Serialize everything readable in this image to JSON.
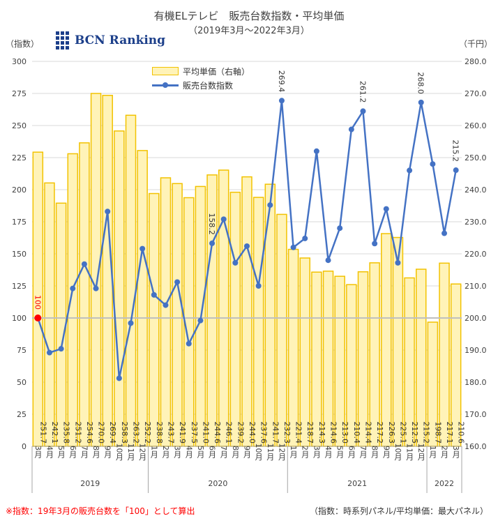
{
  "header": {
    "title": "有機ELテレビ　販売台数指数・平均単価",
    "subtitle": "（2019年3月〜2022年3月）",
    "left_unit": "（指数）",
    "right_unit": "（千円）",
    "logo_text": "BCN Ranking"
  },
  "footnotes": {
    "left": "※指数：19年3月の販売台数を「100」として算出",
    "right": "（指数：時系列パネル/平均単価：最大パネル）"
  },
  "colors": {
    "bar_fill": "#fff3b8",
    "bar_stroke": "#f2c200",
    "line": "#4472c4",
    "highlight": "#ff0000",
    "grid": "#d9d9d9",
    "baseline": "#bfbfbf"
  },
  "chart_data": {
    "type": "bar+line",
    "categories": [
      "3月",
      "4月",
      "5月",
      "6月",
      "7月",
      "8月",
      "9月",
      "10月",
      "11月",
      "12月",
      "1月",
      "2月",
      "3月",
      "4月",
      "5月",
      "6月",
      "7月",
      "8月",
      "9月",
      "10月",
      "11月",
      "12月",
      "1月",
      "2月",
      "3月",
      "4月",
      "5月",
      "6月",
      "7月",
      "8月",
      "9月",
      "10月",
      "11月",
      "12月",
      "1月",
      "2月",
      "3月"
    ],
    "year_groups": [
      {
        "label": "2019",
        "start": 0,
        "end": 9
      },
      {
        "label": "2020",
        "start": 10,
        "end": 21
      },
      {
        "label": "2021",
        "start": 22,
        "end": 33
      },
      {
        "label": "2022",
        "start": 34,
        "end": 36
      }
    ],
    "series": [
      {
        "name": "平均単価（右軸）",
        "axis": "right",
        "kind": "bar",
        "values": [
          251.7,
          242.1,
          235.8,
          251.2,
          254.6,
          270.0,
          269.4,
          258.3,
          263.2,
          252.2,
          238.8,
          243.7,
          241.9,
          237.5,
          241.0,
          244.6,
          246.1,
          239.2,
          244.0,
          237.6,
          241.7,
          232.3,
          221.4,
          218.7,
          214.3,
          214.6,
          213.0,
          210.4,
          214.4,
          217.2,
          226.3,
          225.1,
          212.5,
          215.2,
          198.7,
          217.1,
          210.6
        ]
      },
      {
        "name": "販売台数指数",
        "axis": "left",
        "kind": "line",
        "values": [
          100,
          73,
          76,
          123,
          142,
          123,
          183,
          53,
          96,
          154,
          118,
          110,
          128,
          80,
          98,
          158.2,
          177,
          143,
          156,
          125,
          188,
          269.4,
          155,
          162,
          230,
          145,
          170,
          247,
          261.2,
          158,
          185,
          143,
          215,
          268.0,
          220,
          166,
          215.2
        ]
      }
    ],
    "value_labels": [
      {
        "index": 0,
        "text": "100"
      },
      {
        "index": 15,
        "text": "158.2"
      },
      {
        "index": 21,
        "text": "269.4"
      },
      {
        "index": 28,
        "text": "261.2"
      },
      {
        "index": 33,
        "text": "268.0"
      },
      {
        "index": 36,
        "text": "215.2"
      }
    ],
    "left_axis": {
      "min": 0,
      "max": 300,
      "ticks": [
        "0",
        "25",
        "50",
        "75",
        "100",
        "125",
        "150",
        "175",
        "200",
        "225",
        "250",
        "275",
        "300"
      ]
    },
    "right_axis": {
      "min": 160,
      "max": 280,
      "ticks": [
        "160.0",
        "170.0",
        "180.0",
        "190.0",
        "200.0",
        "210.0",
        "220.0",
        "230.0",
        "240.0",
        "250.0",
        "260.0",
        "270.0",
        "280.0"
      ]
    },
    "reference_line": 100
  }
}
